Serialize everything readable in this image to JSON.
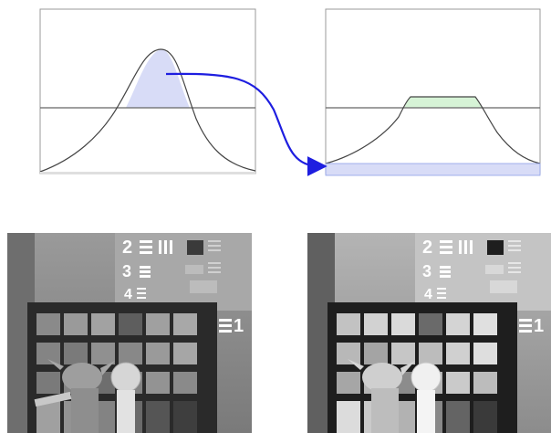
{
  "diagram": {
    "before_panel": {
      "curve": "bell"
    },
    "after_panel": {
      "curve": "clipped-bell"
    },
    "arrow": {
      "color": "#1e1ee0"
    },
    "colors": {
      "area_fill": "#d8dcf7",
      "clipped_fill": "#d6f3d6",
      "redistributed_fill": "#d8dcf7",
      "curve": "#444444"
    }
  },
  "photos": {
    "before": {
      "chart_labels": [
        "2",
        "3",
        "4",
        "1"
      ]
    },
    "after": {
      "chart_labels": [
        "2",
        "3",
        "4",
        "1"
      ]
    }
  }
}
